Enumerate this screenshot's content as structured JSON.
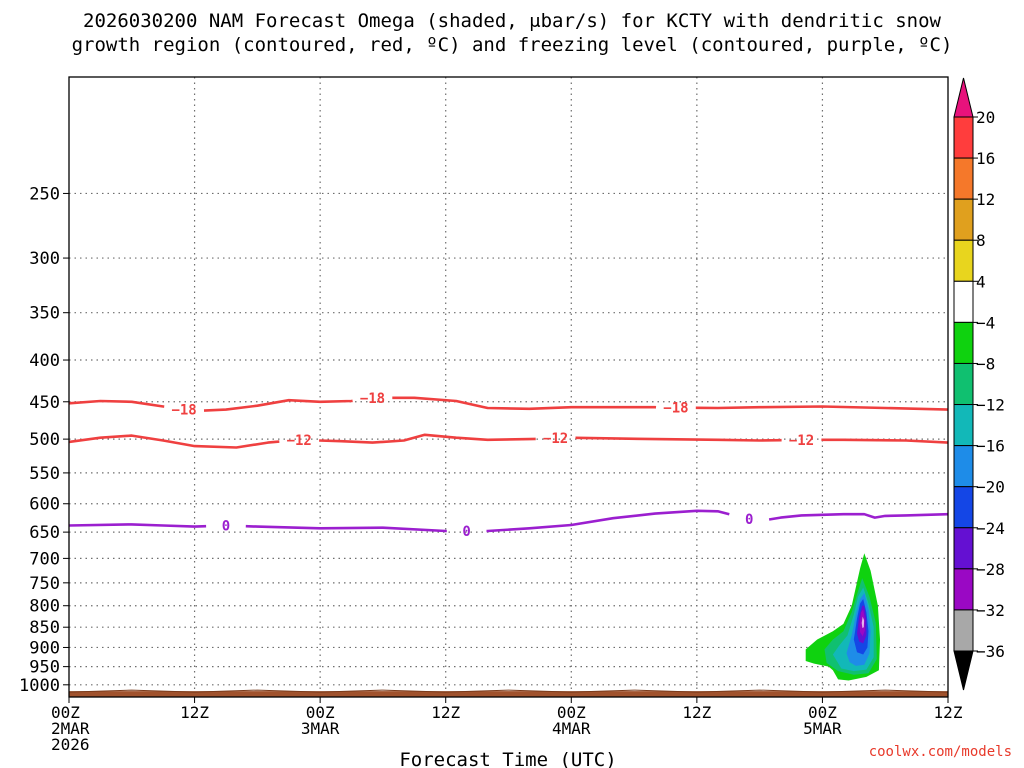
{
  "title_line1": "2026030200 NAM Forecast Omega (shaded, μbar/s) for KCTY with dendritic snow",
  "title_line2": "growth region (contoured, red, ºC) and freezing level (contoured, purple, ºC)",
  "credit": "coolwx.com/models",
  "chart_data": {
    "type": "heatmap",
    "title": "2026030200 NAM Forecast Omega (shaded, μbar/s) for KCTY with dendritic snow growth region (contoured, red, ºC) and freezing level (contoured, purple, ºC)",
    "xlabel": "Forecast Time (UTC)",
    "ylabel": "",
    "x_range_hours": [
      0,
      84
    ],
    "y_range_hPa": [
      1035,
      180
    ],
    "y_ticks": [
      250,
      300,
      350,
      400,
      450,
      500,
      550,
      600,
      650,
      700,
      750,
      800,
      850,
      900,
      950,
      1000
    ],
    "x_ticks": [
      {
        "hour": 0,
        "lines": [
          "00Z",
          "2MAR",
          "2026"
        ]
      },
      {
        "hour": 12,
        "lines": [
          "12Z"
        ]
      },
      {
        "hour": 24,
        "lines": [
          "00Z",
          "3MAR"
        ]
      },
      {
        "hour": 36,
        "lines": [
          "12Z"
        ]
      },
      {
        "hour": 48,
        "lines": [
          "00Z",
          "4MAR"
        ]
      },
      {
        "hour": 60,
        "lines": [
          "12Z"
        ]
      },
      {
        "hour": 72,
        "lines": [
          "00Z",
          "5MAR"
        ]
      },
      {
        "hour": 84,
        "lines": [
          "12Z"
        ]
      }
    ],
    "grid": true,
    "colorbar": {
      "labels": [
        "20",
        "16",
        "12",
        "8",
        "4",
        "−4",
        "−8",
        "−12",
        "−16",
        "−20",
        "−24",
        "−28",
        "−32",
        "−36"
      ],
      "colors": [
        "#ff3d3d",
        "#f5782a",
        "#e0a01e",
        "#e8d51e",
        "#ffffff",
        "#0fd20f",
        "#10c070",
        "#12b8b8",
        "#1e8ce8",
        "#1446e6",
        "#6410d2",
        "#9a08c4",
        "#a8a8a8"
      ],
      "top_arrow_color": "#e8127c",
      "bottom_arrow_color": "#000000"
    },
    "contours": [
      {
        "name": "-18 C isotherm",
        "label": "−18",
        "color": "#ef4040",
        "label_hours": [
          11,
          29,
          58
        ],
        "points": [
          [
            0,
            452
          ],
          [
            3,
            449
          ],
          [
            6,
            450
          ],
          [
            9,
            456
          ],
          [
            12,
            462
          ],
          [
            15,
            460
          ],
          [
            18,
            455
          ],
          [
            21,
            448
          ],
          [
            24,
            450
          ],
          [
            27,
            449
          ],
          [
            29,
            445
          ],
          [
            33,
            445
          ],
          [
            37,
            449
          ],
          [
            40,
            458
          ],
          [
            44,
            459
          ],
          [
            48,
            457
          ],
          [
            56,
            457
          ],
          [
            62,
            458
          ],
          [
            66,
            457
          ],
          [
            72,
            456
          ],
          [
            78,
            458
          ],
          [
            84,
            460
          ]
        ]
      },
      {
        "name": "-12 C isotherm",
        "label": "−12",
        "color": "#ef4040",
        "label_hours": [
          22,
          46.5,
          70
        ],
        "points": [
          [
            0,
            504
          ],
          [
            3,
            498
          ],
          [
            6,
            495
          ],
          [
            9,
            502
          ],
          [
            12,
            510
          ],
          [
            16,
            512
          ],
          [
            19,
            505
          ],
          [
            22,
            501
          ],
          [
            26,
            503
          ],
          [
            29,
            505
          ],
          [
            32,
            502
          ],
          [
            34,
            494
          ],
          [
            37,
            498
          ],
          [
            40,
            501
          ],
          [
            44,
            500
          ],
          [
            48,
            498
          ],
          [
            56,
            500
          ],
          [
            62,
            501
          ],
          [
            66,
            502
          ],
          [
            70,
            501
          ],
          [
            74,
            501
          ],
          [
            80,
            502
          ],
          [
            84,
            505
          ]
        ]
      },
      {
        "name": "0 C freezing level",
        "label": "0",
        "color": "#9b1fcf",
        "label_hours": [
          15,
          38,
          65
        ],
        "points": [
          [
            0,
            638
          ],
          [
            6,
            636
          ],
          [
            9,
            638
          ],
          [
            12,
            640
          ],
          [
            15,
            638
          ],
          [
            18,
            640
          ],
          [
            24,
            643
          ],
          [
            30,
            642
          ],
          [
            36,
            648
          ],
          [
            40,
            648
          ],
          [
            44,
            643
          ],
          [
            48,
            637
          ],
          [
            52,
            625
          ],
          [
            56,
            617
          ],
          [
            60,
            612
          ],
          [
            62,
            613
          ],
          [
            64,
            622
          ],
          [
            66,
            630
          ],
          [
            68,
            624
          ],
          [
            70,
            620
          ],
          [
            74,
            618
          ],
          [
            76,
            618
          ],
          [
            77,
            624
          ],
          [
            78,
            621
          ],
          [
            80,
            620
          ],
          [
            84,
            618
          ]
        ]
      }
    ],
    "omega_core": {
      "hour_range": [
        70,
        77
      ],
      "pressure_range_hPa": [
        990,
        690
      ],
      "min_value_approx": -32,
      "color_bin": "-32 to -28"
    }
  }
}
